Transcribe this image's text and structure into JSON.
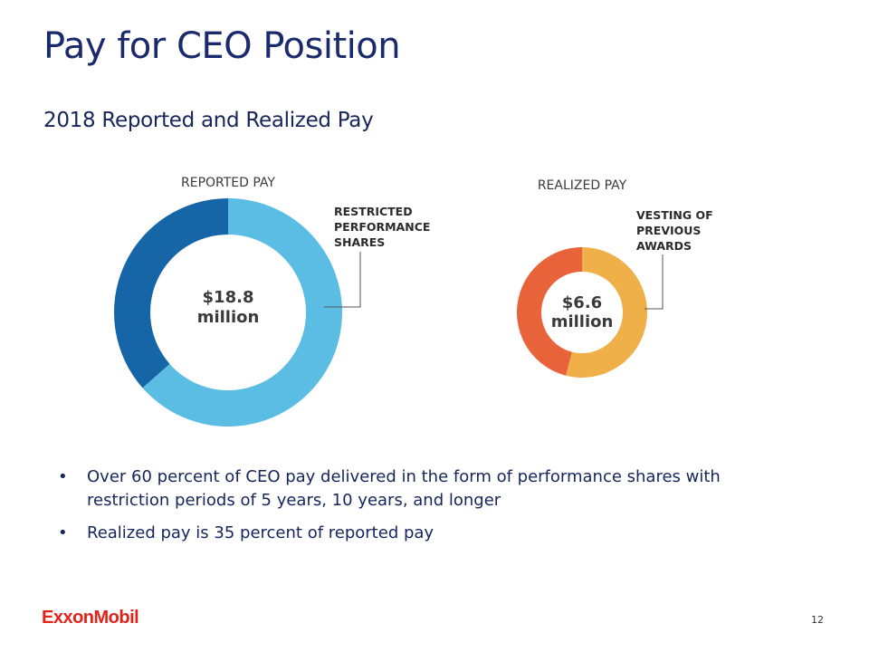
{
  "slide": {
    "title": "Pay for CEO Position",
    "subtitle": "2018 Reported and Realized Pay",
    "page_number": "12",
    "logo_text": "ExxonMobil"
  },
  "bullets": [
    "Over 60 percent of CEO pay delivered in the form of performance shares with restriction periods of 5 years, 10 years, and longer",
    "Realized pay is 35 percent of reported pay"
  ],
  "colors": {
    "title": "#1a2a6c",
    "reported_dark": "#1565a7",
    "reported_light": "#5bbde4",
    "realized_orange": "#e8623a",
    "realized_yellow": "#efb04a",
    "logo_red": "#e2231a"
  },
  "chart_data": [
    {
      "type": "pie",
      "title": "REPORTED PAY",
      "center_label_line1": "$18.8",
      "center_label_line2": "million",
      "total_millions": 18.8,
      "slices": [
        {
          "label": "RESTRICTED PERFORMANCE SHARES",
          "percent": 63.5,
          "color": "#5bbde4"
        },
        {
          "label": "",
          "percent": 36.5,
          "color": "#1565a7"
        }
      ],
      "callout_lines": [
        "RESTRICTED",
        "PERFORMANCE",
        "SHARES"
      ]
    },
    {
      "type": "pie",
      "title": "REALIZED PAY",
      "center_label_line1": "$6.6",
      "center_label_line2": "million",
      "total_millions": 6.6,
      "slices": [
        {
          "label": "VESTING OF PREVIOUS AWARDS",
          "percent": 54,
          "color": "#efb04a"
        },
        {
          "label": "",
          "percent": 46,
          "color": "#e8623a"
        }
      ],
      "callout_lines": [
        "VESTING OF",
        "PREVIOUS",
        "AWARDS"
      ]
    }
  ]
}
